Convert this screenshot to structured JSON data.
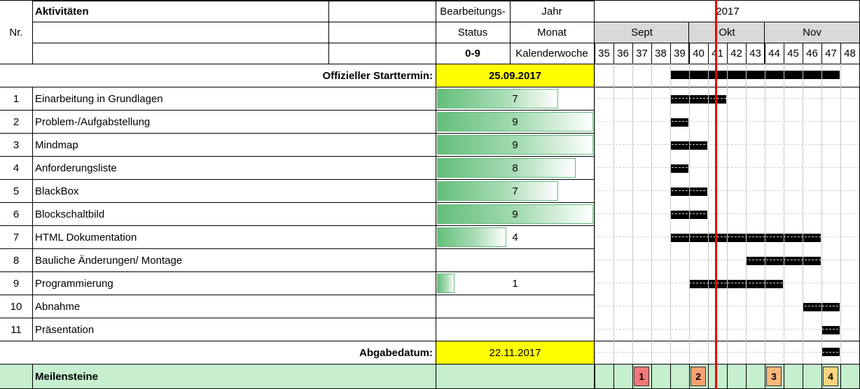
{
  "header": {
    "nr": "Nr.",
    "aktivitaeten": "Aktivitäten",
    "status_line1": "Bearbeitungs-",
    "status_line2": "Status",
    "status_range": "0-9",
    "jahr_label": "Jahr",
    "monat_label": "Monat",
    "kw_label": "Kalenderwoche",
    "year": "2017",
    "months": [
      "Sept",
      "Okt",
      "Nov"
    ],
    "weeks": [
      "35",
      "36",
      "37",
      "38",
      "39",
      "40",
      "41",
      "42",
      "43",
      "44",
      "45",
      "46",
      "47",
      "48"
    ]
  },
  "start": {
    "label": "Offizieller Starttermin:",
    "date": "25.09.2017",
    "highlight_color": "#ffff00"
  },
  "activities": [
    {
      "nr": "1",
      "name": "Einarbeitung in Grundlagen",
      "status": "7",
      "weeks": [
        39,
        41
      ]
    },
    {
      "nr": "2",
      "name": "Problem-/Aufgabstellung",
      "status": "9",
      "weeks": [
        39,
        39
      ]
    },
    {
      "nr": "3",
      "name": "Mindmap",
      "status": "9",
      "weeks": [
        39,
        40
      ]
    },
    {
      "nr": "4",
      "name": "Anforderungsliste",
      "status": "8",
      "weeks": [
        39,
        39
      ]
    },
    {
      "nr": "5",
      "name": "BlackBox",
      "status": "7",
      "weeks": [
        39,
        40
      ]
    },
    {
      "nr": "6",
      "name": "Blockschaltbild",
      "status": "9",
      "weeks": [
        39,
        40
      ]
    },
    {
      "nr": "7",
      "name": "HTML Dokumentation",
      "status": "4",
      "weeks": [
        39,
        46
      ]
    },
    {
      "nr": "8",
      "name": "Bauliche Änderungen/ Montage",
      "status": "",
      "weeks": [
        43,
        46
      ]
    },
    {
      "nr": "9",
      "name": "Programmierung",
      "status": "1",
      "weeks": [
        40,
        44
      ]
    },
    {
      "nr": "10",
      "name": "Abnahme",
      "status": "",
      "weeks": [
        46,
        47
      ]
    },
    {
      "nr": "11",
      "name": "Präsentation",
      "status": "",
      "weeks": [
        47,
        47
      ]
    }
  ],
  "start_row_bar": [
    39,
    47
  ],
  "deadline": {
    "label": "Abgabedatum:",
    "date": "22.11.2017",
    "highlight_color": "#ffff00",
    "bar": [
      47,
      47
    ]
  },
  "milestones": {
    "label": "Meilensteine",
    "row_color": "#c6efce",
    "items": [
      {
        "week": 37,
        "label": "1",
        "color": "#f4777a"
      },
      {
        "week": 40,
        "label": "2",
        "color": "#f8a070"
      },
      {
        "week": 44,
        "label": "3",
        "color": "#fbb878"
      },
      {
        "week": 47,
        "label": "4",
        "color": "#fed37f"
      }
    ]
  },
  "colors": {
    "gantt_bar": "#000000",
    "today_line": "#e00000",
    "month_header": "#d9d9d9",
    "status_bar": "#63be7b"
  }
}
